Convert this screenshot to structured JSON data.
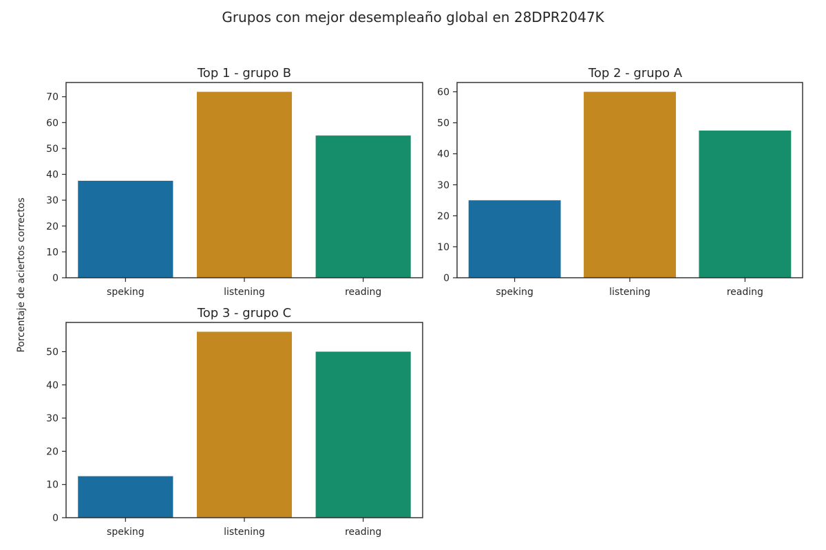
{
  "figure": {
    "suptitle": "Grupos con mejor desempleaño global en 28DPR2047K",
    "ylabel": "Porcentaje de aciertos correctos"
  },
  "chart_data": [
    {
      "type": "bar",
      "title": "Top  1 - grupo B",
      "categories": [
        "speking",
        "listening",
        "reading"
      ],
      "values": [
        37.5,
        71.9,
        55.0
      ],
      "ylim": [
        0,
        75.5
      ],
      "yticks": [
        0,
        10,
        20,
        30,
        40,
        50,
        60,
        70
      ],
      "colors": [
        "#1a6e9f",
        "#c38820",
        "#178e6b"
      ],
      "grid": false
    },
    {
      "type": "bar",
      "title": "Top  2 - grupo A",
      "categories": [
        "speking",
        "listening",
        "reading"
      ],
      "values": [
        25.0,
        60.0,
        47.5
      ],
      "ylim": [
        0,
        63.0
      ],
      "yticks": [
        0,
        10,
        20,
        30,
        40,
        50,
        60
      ],
      "colors": [
        "#1a6e9f",
        "#c38820",
        "#178e6b"
      ],
      "grid": false
    },
    {
      "type": "bar",
      "title": "Top  3 - grupo C",
      "categories": [
        "speking",
        "listening",
        "reading"
      ],
      "values": [
        12.5,
        56.0,
        50.0
      ],
      "ylim": [
        0,
        58.8
      ],
      "yticks": [
        0,
        10,
        20,
        30,
        40,
        50
      ],
      "colors": [
        "#1a6e9f",
        "#c38820",
        "#178e6b"
      ],
      "grid": false
    }
  ]
}
